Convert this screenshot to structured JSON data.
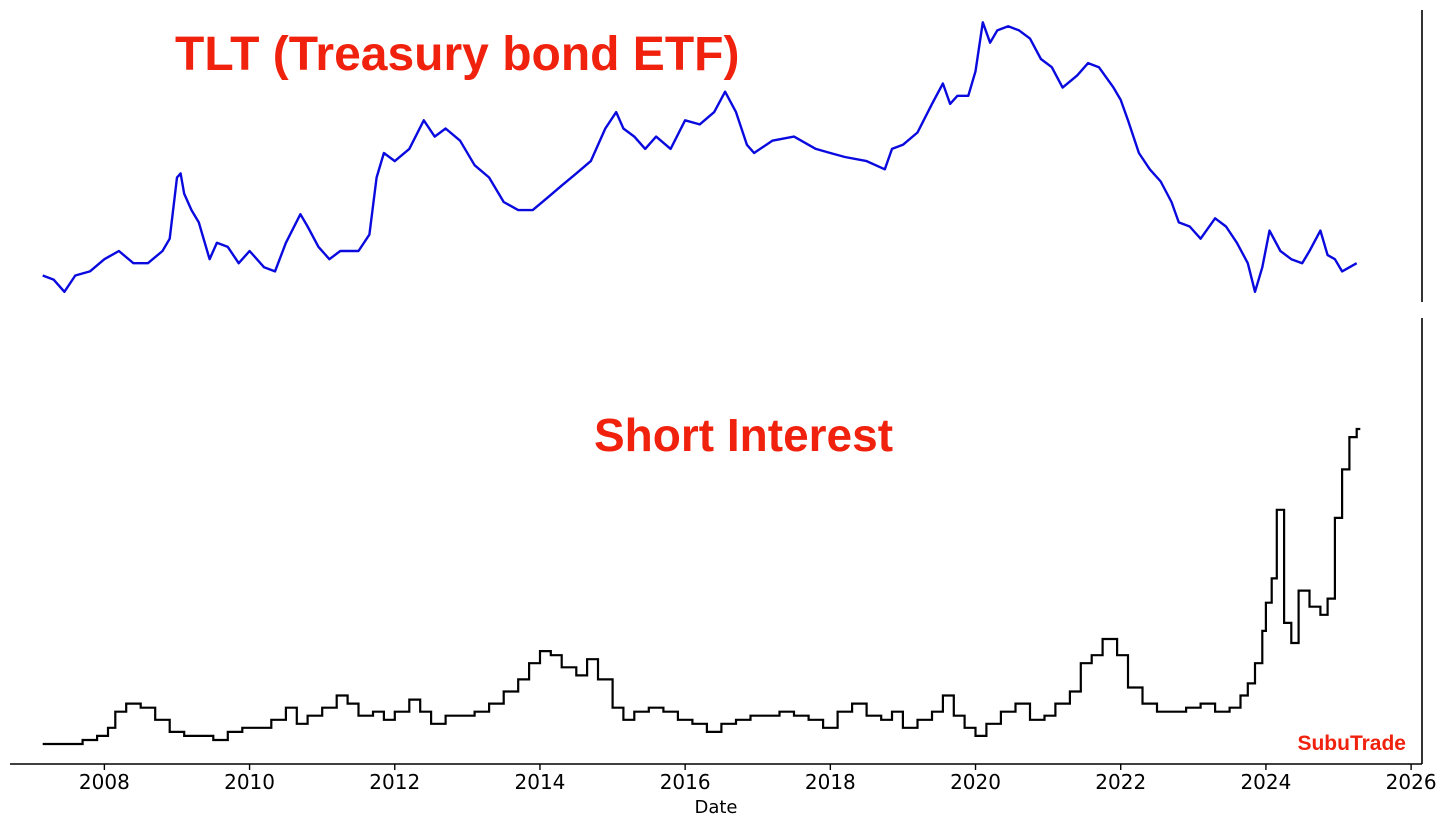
{
  "colors": {
    "title": "#f0220e",
    "tlt_line": "#0a0adf",
    "short_interest_line": "#000000",
    "watermark": "#f0220e",
    "axis": "#000000"
  },
  "watermark": "SubuTrade",
  "xlabel": "Date",
  "x_ticks": [
    "2008",
    "2010",
    "2012",
    "2014",
    "2016",
    "2018",
    "2020",
    "2022",
    "2024",
    "2026"
  ],
  "chart_data": [
    {
      "type": "line",
      "title": "TLT (Treasury bond ETF)",
      "xlabel": "Date",
      "ylabel": "",
      "xlim": [
        2006.7,
        2026.15
      ],
      "ylim": [
        84,
        155
      ],
      "yticks_shown": false,
      "grid": false,
      "series": [
        {
          "x": [
            2007.15,
            2007.3,
            2007.45,
            2007.6,
            2007.8,
            2008.0,
            2008.2,
            2008.4,
            2008.6,
            2008.8,
            2008.9,
            2009.0,
            2009.05,
            2009.1,
            2009.2,
            2009.3,
            2009.45,
            2009.55,
            2009.7,
            2009.85,
            2010.0,
            2010.2,
            2010.35,
            2010.5,
            2010.7,
            2010.8,
            2010.95,
            2011.1,
            2011.25,
            2011.5,
            2011.65,
            2011.75,
            2011.85,
            2012.0,
            2012.2,
            2012.4,
            2012.55,
            2012.7,
            2012.9,
            2013.1,
            2013.3,
            2013.5,
            2013.7,
            2013.9,
            2014.1,
            2014.3,
            2014.5,
            2014.7,
            2014.9,
            2015.05,
            2015.15,
            2015.3,
            2015.45,
            2015.6,
            2015.8,
            2016.0,
            2016.2,
            2016.4,
            2016.55,
            2016.7,
            2016.85,
            2016.95,
            2017.2,
            2017.5,
            2017.8,
            2018.0,
            2018.2,
            2018.5,
            2018.75,
            2018.85,
            2019.0,
            2019.2,
            2019.4,
            2019.55,
            2019.65,
            2019.75,
            2019.9,
            2020.0,
            2020.1,
            2020.2,
            2020.3,
            2020.45,
            2020.6,
            2020.75,
            2020.9,
            2021.05,
            2021.2,
            2021.4,
            2021.55,
            2021.7,
            2021.9,
            2022.0,
            2022.1,
            2022.25,
            2022.4,
            2022.55,
            2022.7,
            2022.8,
            2022.95,
            2023.1,
            2023.3,
            2023.45,
            2023.6,
            2023.75,
            2023.85,
            2023.95,
            2024.05,
            2024.2,
            2024.35,
            2024.5,
            2024.6,
            2024.75,
            2024.85,
            2024.95,
            2025.05,
            2025.15,
            2025.25
          ],
          "y": [
            90,
            89,
            86,
            90,
            91,
            94,
            96,
            93,
            93,
            96,
            99,
            114,
            115,
            110,
            106,
            103,
            94,
            98,
            97,
            93,
            96,
            92,
            91,
            98,
            105,
            102,
            97,
            94,
            96,
            96,
            100,
            114,
            120,
            118,
            121,
            128,
            124,
            126,
            123,
            117,
            114,
            108,
            106,
            106,
            109,
            112,
            115,
            118,
            126,
            130,
            126,
            124,
            121,
            124,
            121,
            128,
            127,
            130,
            135,
            130,
            122,
            120,
            123,
            124,
            121,
            120,
            119,
            118,
            116,
            121,
            122,
            125,
            132,
            137,
            132,
            134,
            134,
            140,
            152,
            147,
            150,
            151,
            150,
            148,
            143,
            141,
            136,
            139,
            142,
            141,
            136,
            133,
            128,
            120,
            116,
            113,
            108,
            103,
            102,
            99,
            104,
            102,
            98,
            93,
            86,
            92,
            101,
            96,
            94,
            93,
            96,
            101,
            95,
            94,
            91,
            92,
            93
          ]
        }
      ]
    },
    {
      "type": "line",
      "title": "Short Interest",
      "xlabel": "Date",
      "ylabel": "",
      "xlim": [
        2006.7,
        2026.15
      ],
      "ylim": [
        0,
        105
      ],
      "yticks_shown": false,
      "grid": false,
      "series": [
        {
          "x": [
            2007.15,
            2007.45,
            2007.7,
            2007.9,
            2008.05,
            2008.15,
            2008.3,
            2008.5,
            2008.7,
            2008.9,
            2009.1,
            2009.3,
            2009.5,
            2009.7,
            2009.9,
            2010.1,
            2010.3,
            2010.5,
            2010.65,
            2010.8,
            2011.0,
            2011.2,
            2011.35,
            2011.5,
            2011.7,
            2011.85,
            2012.0,
            2012.2,
            2012.35,
            2012.5,
            2012.7,
            2012.9,
            2013.1,
            2013.3,
            2013.5,
            2013.7,
            2013.85,
            2014.0,
            2014.15,
            2014.3,
            2014.5,
            2014.65,
            2014.8,
            2015.0,
            2015.15,
            2015.3,
            2015.5,
            2015.7,
            2015.9,
            2016.1,
            2016.3,
            2016.5,
            2016.7,
            2016.9,
            2017.1,
            2017.3,
            2017.5,
            2017.7,
            2017.9,
            2018.1,
            2018.3,
            2018.5,
            2018.7,
            2018.85,
            2019.0,
            2019.2,
            2019.4,
            2019.55,
            2019.7,
            2019.85,
            2020.0,
            2020.15,
            2020.35,
            2020.55,
            2020.75,
            2020.95,
            2021.1,
            2021.3,
            2021.45,
            2021.6,
            2021.75,
            2021.95,
            2022.1,
            2022.3,
            2022.5,
            2022.7,
            2022.9,
            2023.1,
            2023.3,
            2023.5,
            2023.65,
            2023.75,
            2023.85,
            2023.95,
            2024.0,
            2024.08,
            2024.15,
            2024.25,
            2024.35,
            2024.45,
            2024.6,
            2024.75,
            2024.85,
            2024.95,
            2025.05,
            2025.15,
            2025.25
          ],
          "y": [
            0,
            0,
            1,
            2,
            4,
            8,
            10,
            9,
            6,
            3,
            2,
            2,
            1,
            3,
            4,
            4,
            6,
            9,
            5,
            7,
            9,
            12,
            10,
            7,
            8,
            6,
            8,
            11,
            8,
            5,
            7,
            7,
            8,
            10,
            13,
            16,
            20,
            23,
            22,
            19,
            17,
            21,
            16,
            9,
            6,
            8,
            9,
            8,
            6,
            5,
            3,
            5,
            6,
            7,
            7,
            8,
            7,
            6,
            4,
            8,
            10,
            7,
            6,
            8,
            4,
            6,
            8,
            12,
            7,
            4,
            2,
            5,
            8,
            10,
            6,
            7,
            10,
            13,
            20,
            22,
            26,
            22,
            14,
            10,
            8,
            8,
            9,
            10,
            8,
            9,
            12,
            15,
            20,
            28,
            35,
            41,
            58,
            30,
            25,
            38,
            34,
            32,
            36,
            56,
            68,
            76,
            78
          ]
        }
      ]
    }
  ]
}
